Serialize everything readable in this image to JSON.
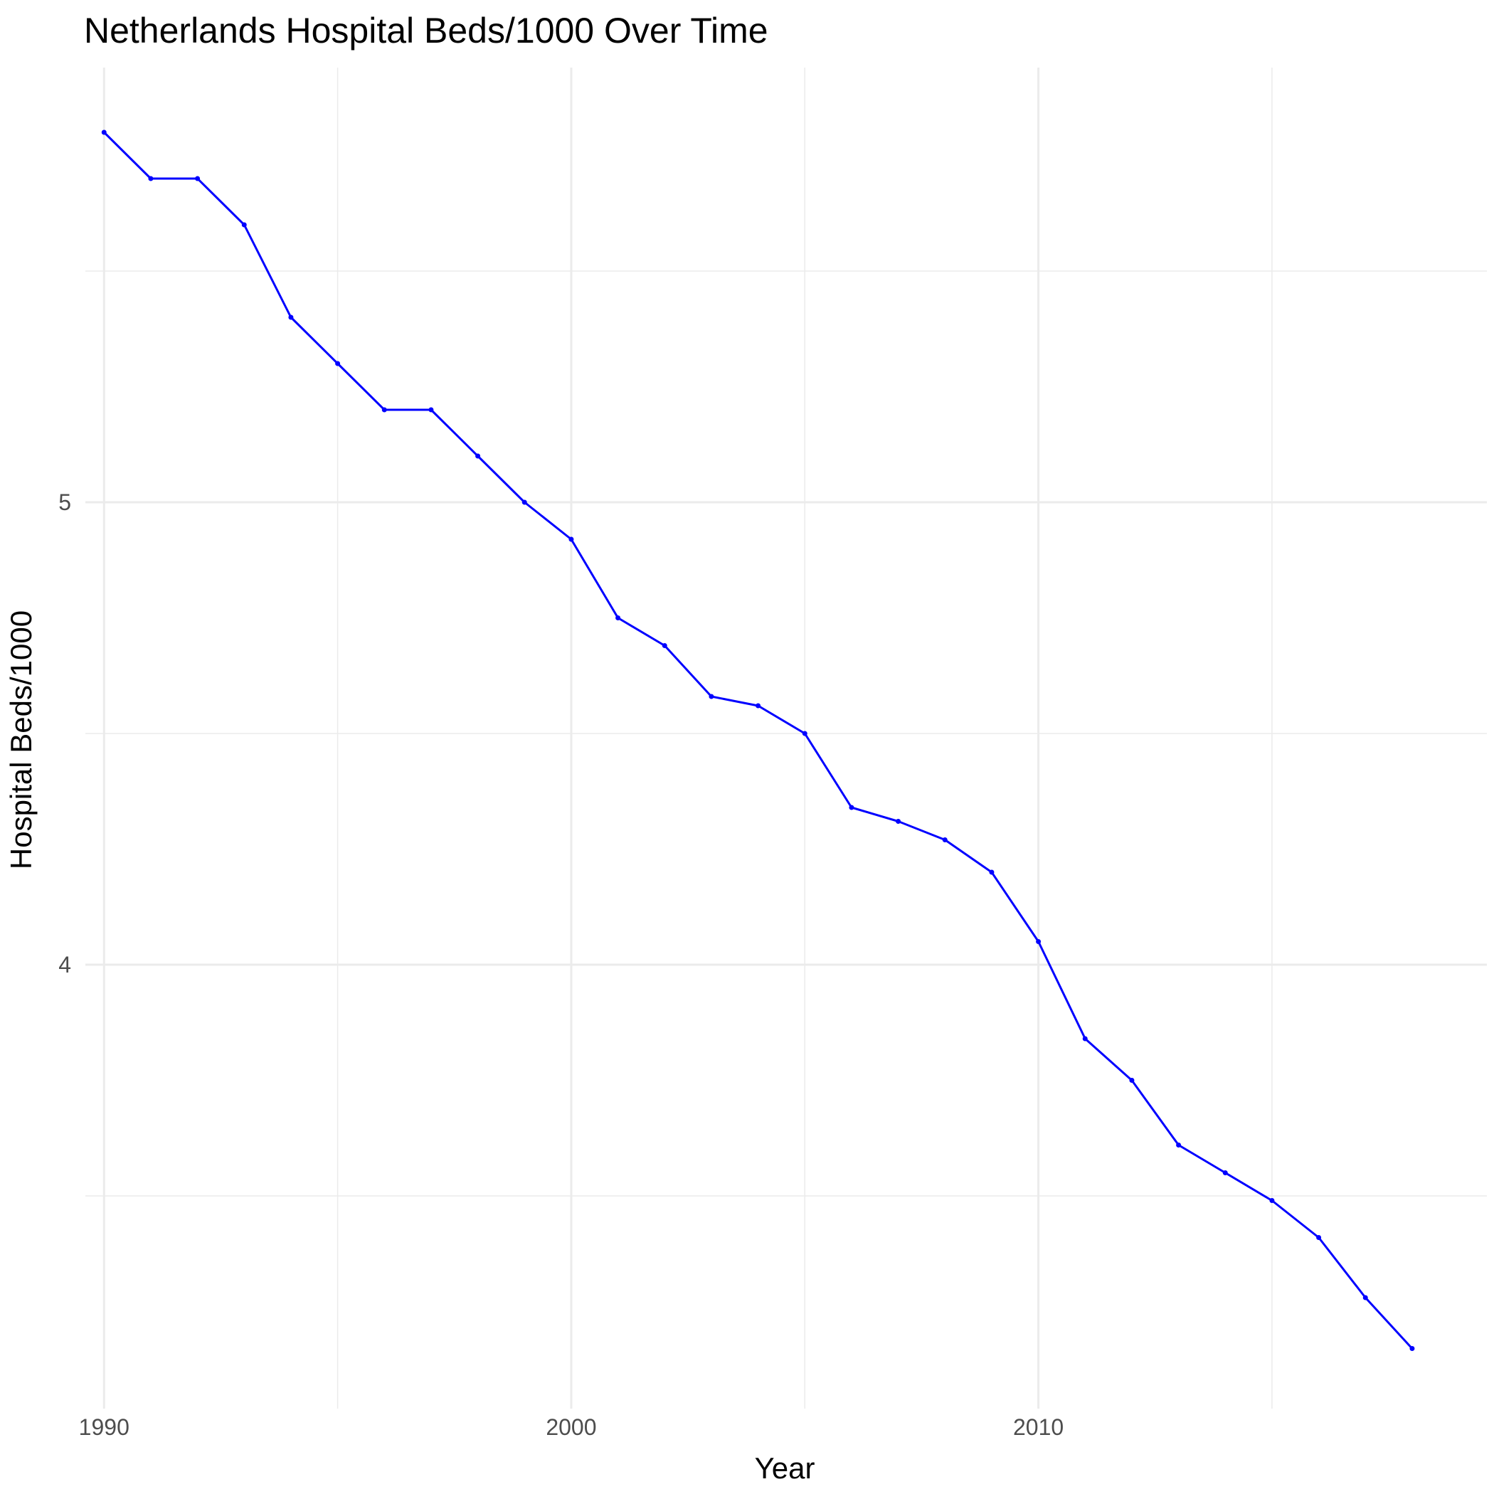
{
  "chart_data": {
    "type": "line",
    "title": "Netherlands Hospital Beds/1000 Over Time",
    "xlabel": "Year",
    "ylabel": "Hospital Beds/1000",
    "xlim": [
      1989.6,
      2019.6
    ],
    "ylim": [
      3.04,
      5.94
    ],
    "x_ticks": [
      1990,
      2000,
      2010
    ],
    "y_ticks": [
      4,
      5
    ],
    "grid": true,
    "legend": "none",
    "line_color": "#0000ff",
    "grid_color": "#ebebeb",
    "series": [
      {
        "x": [
          1990,
          1991,
          1992,
          1993,
          1994,
          1995,
          1996,
          1997,
          1998,
          1999,
          2000,
          2001,
          2002,
          2003,
          2004,
          2005,
          2006,
          2007,
          2008,
          2009,
          2010,
          2011,
          2012,
          2013,
          2014,
          2015,
          2016,
          2017,
          2018
        ],
        "y": [
          5.8,
          5.7,
          5.7,
          5.6,
          5.4,
          5.3,
          5.2,
          5.2,
          5.1,
          5.0,
          4.92,
          4.75,
          4.69,
          4.58,
          4.56,
          4.5,
          4.34,
          4.31,
          4.27,
          4.2,
          4.05,
          3.84,
          3.75,
          3.61,
          3.55,
          3.49,
          3.41,
          3.28,
          3.17
        ]
      }
    ]
  }
}
